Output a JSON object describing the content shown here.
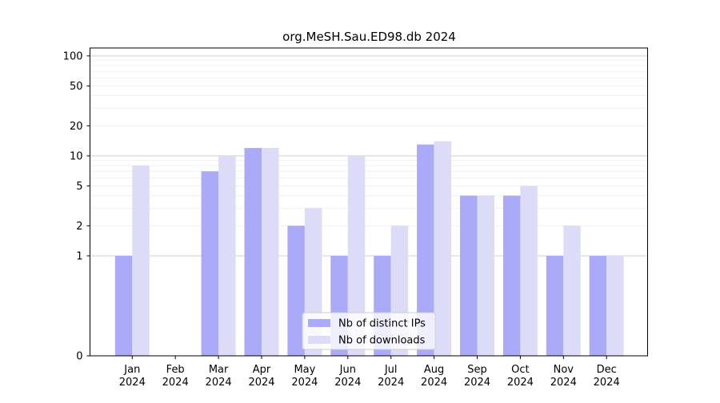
{
  "chart_data": {
    "type": "bar",
    "title": "org.MeSH.Sau.ED98.db 2024",
    "xlabel": "",
    "ylabel": "",
    "yscale": "symlog",
    "ylim": [
      0,
      120
    ],
    "yticks": [
      0,
      1,
      2,
      5,
      10,
      20,
      50,
      100
    ],
    "ytick_labels": [
      "0",
      "1",
      "2",
      "5",
      "10",
      "20",
      "50",
      "100"
    ],
    "grid": true,
    "legend_position": "bottom-center",
    "categories": [
      "Jan\n2024",
      "Feb\n2024",
      "Mar\n2024",
      "Apr\n2024",
      "May\n2024",
      "Jun\n2024",
      "Jul\n2024",
      "Aug\n2024",
      "Sep\n2024",
      "Oct\n2024",
      "Nov\n2024",
      "Dec\n2024"
    ],
    "series": [
      {
        "name": "Nb of distinct IPs",
        "color": "#aaaaf8",
        "values": [
          1,
          0,
          7,
          12,
          2,
          1,
          1,
          13,
          4,
          4,
          1,
          1
        ]
      },
      {
        "name": "Nb of downloads",
        "color": "#dcdcf9",
        "values": [
          8,
          0,
          10,
          12,
          3,
          10,
          2,
          14,
          4,
          5,
          2,
          1
        ]
      }
    ]
  }
}
